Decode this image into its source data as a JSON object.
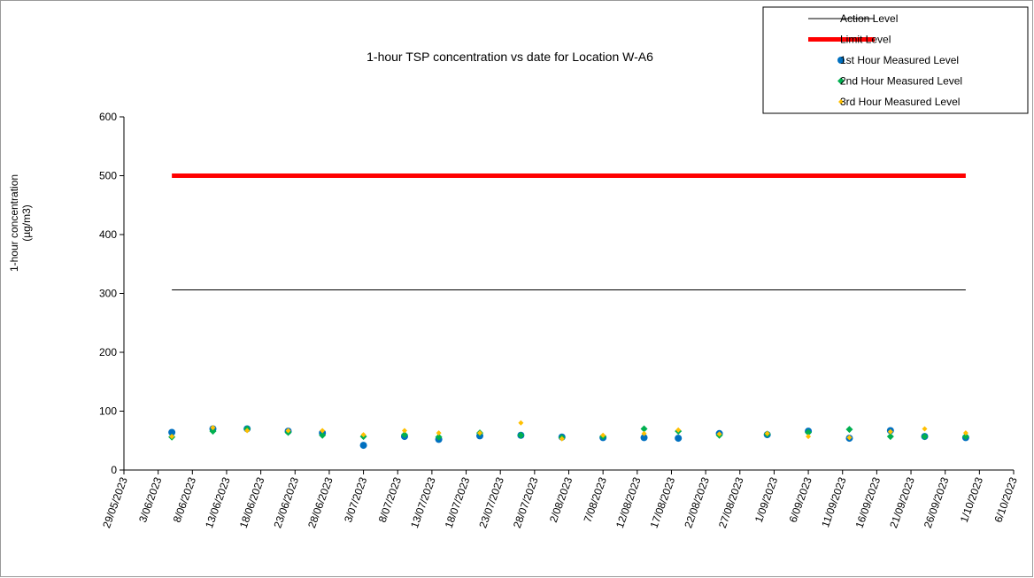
{
  "chart_data": {
    "type": "scatter",
    "title": "1-hour TSP concentration vs date for Location  W-A6",
    "y_label": "1-hour concentration\n(µg/m3)",
    "x": [
      "5/06/2023",
      "11/06/2023",
      "16/06/2023",
      "22/06/2023",
      "27/06/2023",
      "3/07/2023",
      "9/07/2023",
      "14/07/2023",
      "20/07/2023",
      "26/07/2023",
      "1/08/2023",
      "7/08/2023",
      "13/08/2023",
      "18/08/2023",
      "24/08/2023",
      "31/08/2023",
      "6/09/2023",
      "12/09/2023",
      "18/09/2023",
      "23/09/2023",
      "29/09/2023"
    ],
    "series": [
      {
        "name": "Action Level",
        "color": "#000000",
        "marker": "line",
        "x": [
          "5/06/2023",
          "29/09/2023"
        ],
        "values": [
          306,
          306
        ]
      },
      {
        "name": "Limit Level",
        "color": "#ff0000",
        "marker": "thick-line",
        "x": [
          "5/06/2023",
          "29/09/2023"
        ],
        "values": [
          500,
          500
        ]
      },
      {
        "name": "1st Hour Measured Level",
        "color": "#0070c0",
        "marker": "circle",
        "values": [
          64,
          70,
          70,
          66,
          63,
          42,
          57,
          52,
          58,
          59,
          56,
          55,
          55,
          54,
          62,
          60,
          66,
          54,
          67,
          57,
          55
        ]
      },
      {
        "name": "2nd Hour Measured Level",
        "color": "#00b050",
        "marker": "diamond",
        "values": [
          56,
          66,
          70,
          64,
          59,
          57,
          60,
          56,
          63,
          59,
          55,
          57,
          70,
          66,
          59,
          61,
          64,
          69,
          57,
          57,
          57
        ]
      },
      {
        "name": "3rd Hour Measured Level",
        "color": "#ffc000",
        "marker": "small-diamond",
        "values": [
          57,
          72,
          67,
          67,
          67,
          60,
          67,
          63,
          63,
          80,
          53,
          59,
          62,
          68,
          61,
          62,
          57,
          55,
          65,
          70,
          63
        ]
      }
    ],
    "xlim": [
      "29/05/2023",
      "6/10/2023"
    ],
    "xticks": [
      "29/05/2023",
      "3/06/2023",
      "8/06/2023",
      "13/06/2023",
      "18/06/2023",
      "23/06/2023",
      "28/06/2023",
      "3/07/2023",
      "8/07/2023",
      "13/07/2023",
      "18/07/2023",
      "23/07/2023",
      "28/07/2023",
      "2/08/2023",
      "7/08/2023",
      "12/08/2023",
      "17/08/2023",
      "22/08/2023",
      "27/08/2023",
      "1/09/2023",
      "6/09/2023",
      "11/09/2023",
      "16/09/2023",
      "21/09/2023",
      "26/09/2023",
      "1/10/2023",
      "6/10/2023"
    ],
    "ylim": [
      0,
      600
    ],
    "yticks": [
      0,
      100,
      200,
      300,
      400,
      500,
      600
    ],
    "legend": "top-right"
  }
}
